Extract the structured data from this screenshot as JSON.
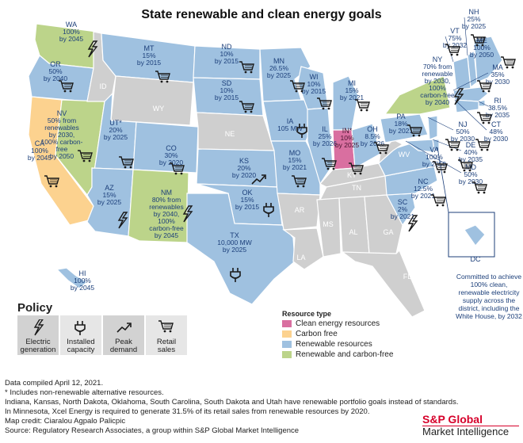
{
  "title": "State renewable and clean energy goals",
  "legend": {
    "title": "Resource type",
    "items": [
      {
        "label": "Clean energy resources",
        "color": "#d96fa0"
      },
      {
        "label": "Carbon free",
        "color": "#fcd28f"
      },
      {
        "label": "Renewable resources",
        "color": "#9fc1e0"
      },
      {
        "label": "Renewable and carbon-free",
        "color": "#bcd48a"
      }
    ]
  },
  "colors": {
    "none": "#cfcfcf",
    "text_blue": "#1c3f7a",
    "brand_red": "#d6002a"
  },
  "policy": {
    "title": "Policy",
    "items": [
      {
        "label1": "Electric",
        "label2": "generation",
        "icon": "lightning-icon"
      },
      {
        "label1": "Installed",
        "label2": "capacity",
        "icon": "plug-icon"
      },
      {
        "label1": "Peak",
        "label2": "demand",
        "icon": "trend-arrow-icon"
      },
      {
        "label1": "Retail",
        "label2": "sales",
        "icon": "cart-icon"
      }
    ]
  },
  "states": [
    {
      "abbr": "WA",
      "lines": [
        "100%",
        "by 2045"
      ],
      "type": "rc",
      "icon": "lightning-icon"
    },
    {
      "abbr": "OR",
      "lines": [
        "50%",
        "by 2040"
      ],
      "type": "r",
      "icon": "cart-icon"
    },
    {
      "abbr": "CA",
      "lines": [
        "100%",
        "by 2045"
      ],
      "type": "cf",
      "icon": "cart-icon"
    },
    {
      "abbr": "NV",
      "lines": [
        "50% from",
        "renewables",
        "by 2030,",
        "100% carbon-",
        "free",
        "by 2050"
      ],
      "type": "rc",
      "icon": "cart-icon"
    },
    {
      "abbr": "ID",
      "lines": [],
      "type": "none",
      "icon": ""
    },
    {
      "abbr": "MT",
      "lines": [
        "15%",
        "by 2015"
      ],
      "type": "r",
      "icon": "cart-icon"
    },
    {
      "abbr": "WY",
      "lines": [],
      "type": "none",
      "icon": ""
    },
    {
      "abbr": "UT*",
      "lines": [
        "20%",
        "by 2025"
      ],
      "type": "r",
      "icon": "cart-icon"
    },
    {
      "abbr": "AZ",
      "lines": [
        "15%",
        "by 2025"
      ],
      "type": "r",
      "icon": "lightning-icon"
    },
    {
      "abbr": "CO",
      "lines": [
        "30%",
        "by 2020"
      ],
      "type": "r",
      "icon": "cart-icon"
    },
    {
      "abbr": "NM",
      "lines": [
        "80% from",
        "renewables",
        "by 2040,",
        "100%",
        "carbon-free",
        "by 2045"
      ],
      "type": "rc",
      "icon": "lightning-icon"
    },
    {
      "abbr": "ND",
      "lines": [
        "10%",
        "by 2015"
      ],
      "type": "r",
      "icon": "cart-icon"
    },
    {
      "abbr": "SD",
      "lines": [
        "10%",
        "by 2015"
      ],
      "type": "r",
      "icon": "cart-icon"
    },
    {
      "abbr": "NE",
      "lines": [],
      "type": "none",
      "icon": ""
    },
    {
      "abbr": "KS",
      "lines": [
        "20%",
        "by 2020"
      ],
      "type": "r",
      "icon": "trend-arrow-icon"
    },
    {
      "abbr": "OK",
      "lines": [
        "15%",
        "by 2015"
      ],
      "type": "r",
      "icon": "plug-icon"
    },
    {
      "abbr": "TX",
      "lines": [
        "10,000 MW",
        "by 2025"
      ],
      "type": "r",
      "icon": "plug-icon"
    },
    {
      "abbr": "MN",
      "lines": [
        "26.5%",
        "by 2025"
      ],
      "type": "r",
      "icon": "cart-icon"
    },
    {
      "abbr": "IA",
      "lines": [
        "105 MW"
      ],
      "type": "r",
      "icon": "plug-icon"
    },
    {
      "abbr": "MO",
      "lines": [
        "15%",
        "by 2021"
      ],
      "type": "r",
      "icon": "cart-icon"
    },
    {
      "abbr": "AR",
      "lines": [],
      "type": "none",
      "icon": ""
    },
    {
      "abbr": "LA",
      "lines": [],
      "type": "none",
      "icon": ""
    },
    {
      "abbr": "WI",
      "lines": [
        "10%",
        "by 2015"
      ],
      "type": "r",
      "icon": "cart-icon"
    },
    {
      "abbr": "IL",
      "lines": [
        "25%",
        "by 2026"
      ],
      "type": "r",
      "icon": "cart-icon"
    },
    {
      "abbr": "MI",
      "lines": [
        "15%",
        "by 2021"
      ],
      "type": "r",
      "icon": "cart-icon"
    },
    {
      "abbr": "IN*",
      "lines": [
        "10%",
        "by 2025"
      ],
      "type": "clean",
      "icon": "cart-icon"
    },
    {
      "abbr": "OH",
      "lines": [
        "8.5%",
        "by 2026"
      ],
      "type": "r",
      "icon": "cart-icon"
    },
    {
      "abbr": "KY",
      "lines": [],
      "type": "none",
      "icon": ""
    },
    {
      "abbr": "TN",
      "lines": [],
      "type": "none",
      "icon": ""
    },
    {
      "abbr": "MS",
      "lines": [],
      "type": "none",
      "icon": ""
    },
    {
      "abbr": "AL",
      "lines": [],
      "type": "none",
      "icon": ""
    },
    {
      "abbr": "GA",
      "lines": [],
      "type": "none",
      "icon": ""
    },
    {
      "abbr": "FL",
      "lines": [],
      "type": "none",
      "icon": ""
    },
    {
      "abbr": "SC",
      "lines": [
        "2%",
        "by 2021"
      ],
      "type": "r",
      "icon": "lightning-icon"
    },
    {
      "abbr": "NC",
      "lines": [
        "12.5%",
        "by 2021"
      ],
      "type": "r",
      "icon": "cart-icon"
    },
    {
      "abbr": "VA",
      "lines": [
        "100%",
        "by 2050"
      ],
      "type": "r",
      "icon": "cart-icon"
    },
    {
      "abbr": "WV",
      "lines": [],
      "type": "none",
      "icon": ""
    },
    {
      "abbr": "PA",
      "lines": [
        "18%",
        "by 2021"
      ],
      "type": "r",
      "icon": "cart-icon"
    },
    {
      "abbr": "NY",
      "lines": [
        "70% from",
        "renewable",
        "by 2030,",
        "100%",
        "carbon-free",
        "by 2040"
      ],
      "type": "rc",
      "icon": "lightning-icon"
    },
    {
      "abbr": "ME",
      "lines": [
        "100%",
        "by 2050"
      ],
      "type": "r",
      "icon": "cart-icon"
    },
    {
      "abbr": "NH",
      "lines": [
        "25%",
        "by 2025"
      ],
      "type": "r",
      "icon": "cart-icon"
    },
    {
      "abbr": "VT",
      "lines": [
        "75%",
        "by 2032"
      ],
      "type": "r",
      "icon": "cart-icon"
    },
    {
      "abbr": "MA",
      "lines": [
        "35%",
        "by 2030"
      ],
      "type": "r",
      "icon": "cart-icon"
    },
    {
      "abbr": "RI",
      "lines": [
        "38.5%",
        "by 2035"
      ],
      "type": "r",
      "icon": "cart-icon"
    },
    {
      "abbr": "CT",
      "lines": [
        "48%",
        "by 2030"
      ],
      "type": "r",
      "icon": "cart-icon"
    },
    {
      "abbr": "NJ",
      "lines": [
        "50%",
        "by 2030"
      ],
      "type": "r",
      "icon": "cart-icon"
    },
    {
      "abbr": "DE",
      "lines": [
        "40%",
        "by 2035"
      ],
      "type": "r",
      "icon": "cart-icon"
    },
    {
      "abbr": "MD",
      "lines": [
        "50%",
        "by 2030"
      ],
      "type": "r",
      "icon": "cart-icon"
    },
    {
      "abbr": "HI",
      "lines": [
        "100%",
        "by 2045"
      ],
      "type": "r",
      "icon": ""
    },
    {
      "abbr": "DC",
      "lines": [],
      "type": "r",
      "icon": ""
    }
  ],
  "dc_note": "Committed to achieve 100% clean, renewable electricity supply across the district, including the White House, by 2032",
  "notes": [
    "Data compiled April 12, 2021.",
    "* Includes non-renewable alternative resources.",
    "Indiana, Kansas, North Dakota, Oklahoma, South Carolina, South Dakota and Utah have renewable portfolio goals instead of standards.",
    "In Minnesota, Xcel Energy is required to generate 31.5% of its retail sales from renewable resources by 2020.",
    "Map credit: Ciaralou Agpalo Palicpic",
    "Source: Regulatory Research Associates, a group within S&P Global Market Intelligence"
  ],
  "brand": {
    "line1": "S&P Global",
    "line2": "Market Intelligence"
  }
}
